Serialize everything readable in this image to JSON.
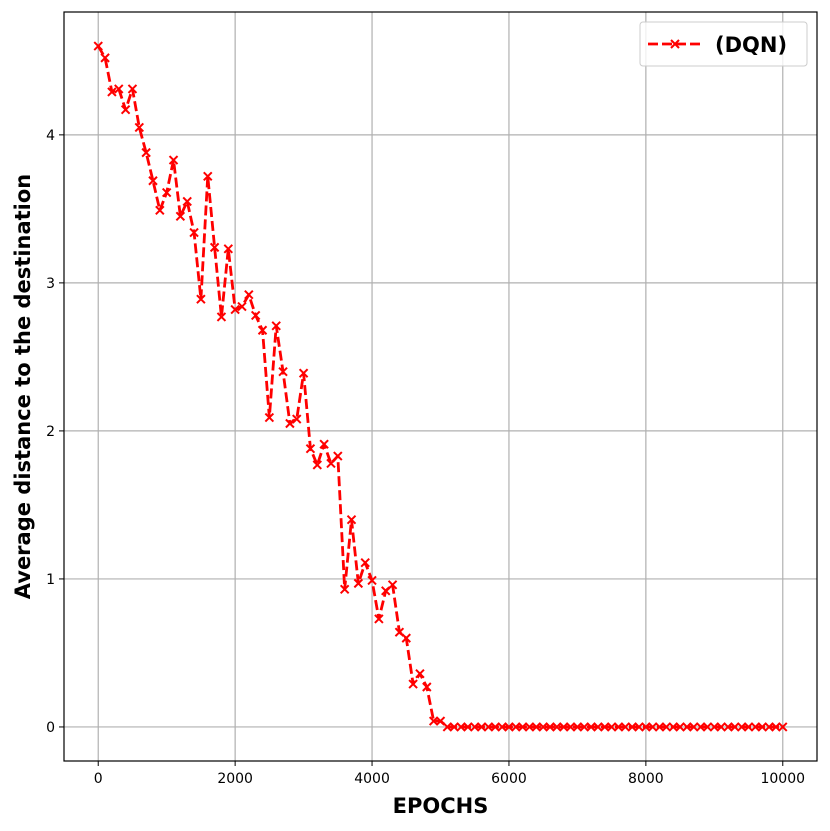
{
  "chart_data": {
    "type": "line",
    "title": "",
    "xlabel": "EPOCHS",
    "ylabel": "Average distance to the destination",
    "xlim": [
      -500,
      10500
    ],
    "ylim": [
      -0.23,
      4.83
    ],
    "xticks": [
      0,
      2000,
      4000,
      6000,
      8000,
      10000
    ],
    "yticks": [
      0,
      1,
      2,
      3,
      4
    ],
    "grid": true,
    "legend_position": "top-right",
    "series": [
      {
        "name": "(DQN)",
        "color": "#ff0000",
        "line_style": "dashed",
        "marker": "x",
        "x": [
          0,
          100,
          200,
          300,
          400,
          500,
          600,
          700,
          800,
          900,
          1000,
          1100,
          1200,
          1300,
          1400,
          1500,
          1600,
          1700,
          1800,
          1900,
          2000,
          2100,
          2200,
          2300,
          2400,
          2500,
          2600,
          2700,
          2800,
          2900,
          3000,
          3100,
          3200,
          3300,
          3400,
          3500,
          3600,
          3700,
          3800,
          3900,
          4000,
          4100,
          4200,
          4300,
          4400,
          4500,
          4600,
          4700,
          4800,
          4900,
          5000,
          5100,
          5200,
          5300,
          5400,
          5500,
          5600,
          5700,
          5800,
          5900,
          6000,
          6100,
          6200,
          6300,
          6400,
          6500,
          6600,
          6700,
          6800,
          6900,
          7000,
          7100,
          7200,
          7300,
          7400,
          7500,
          7600,
          7700,
          7800,
          7900,
          8000,
          8100,
          8200,
          8300,
          8400,
          8500,
          8600,
          8700,
          8800,
          8900,
          9000,
          9100,
          9200,
          9300,
          9400,
          9500,
          9600,
          9700,
          9800,
          9900,
          10000
        ],
        "y": [
          4.6,
          4.52,
          4.29,
          4.31,
          4.17,
          4.31,
          4.05,
          3.88,
          3.69,
          3.49,
          3.61,
          3.83,
          3.45,
          3.55,
          3.34,
          2.89,
          3.72,
          3.24,
          2.77,
          3.23,
          2.82,
          2.84,
          2.92,
          2.78,
          2.68,
          2.09,
          2.71,
          2.4,
          2.05,
          2.08,
          2.39,
          1.88,
          1.77,
          1.91,
          1.78,
          1.83,
          0.93,
          1.4,
          0.97,
          1.11,
          0.99,
          0.73,
          0.92,
          0.96,
          0.64,
          0.6,
          0.29,
          0.36,
          0.27,
          0.04,
          0.04,
          0,
          0,
          0,
          0,
          0,
          0,
          0,
          0,
          0,
          0,
          0,
          0,
          0,
          0,
          0,
          0,
          0,
          0,
          0,
          0,
          0,
          0,
          0,
          0,
          0,
          0,
          0,
          0,
          0,
          0,
          0,
          0,
          0,
          0,
          0,
          0,
          0,
          0,
          0,
          0,
          0,
          0,
          0,
          0,
          0,
          0,
          0,
          0,
          0,
          0
        ]
      }
    ]
  }
}
